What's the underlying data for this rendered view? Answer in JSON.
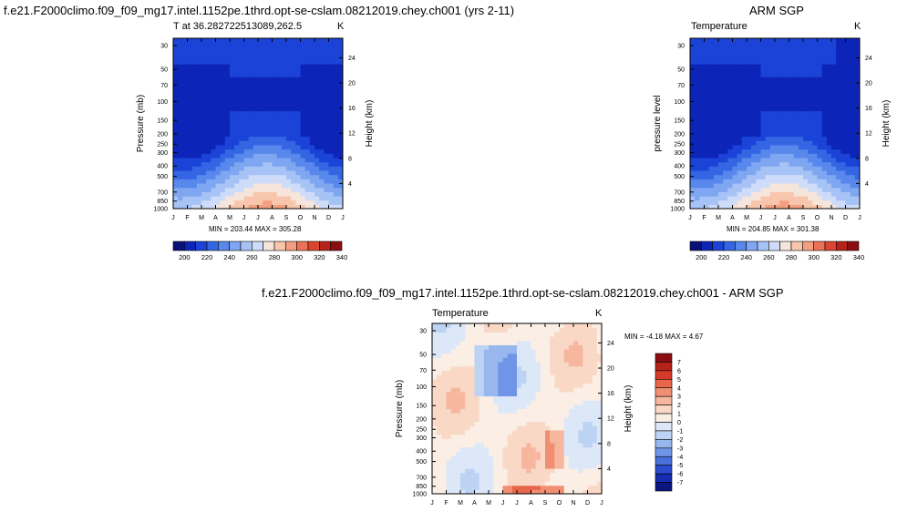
{
  "chart_data": [
    {
      "type": "heatmap",
      "panel": "model",
      "title": "f.e21.F2000climo.f09_f09_mg17.intel.1152pe.1thrd.opt-se-cslam.08212019.chey.ch001 (yrs 2-11)",
      "subtitle_left": "T at 36.282722513089,262.5",
      "unit": "K",
      "ylabel": "Pressure (mb)",
      "ylabel_right": "Height (km)",
      "stats": "MIN = 203.44  MAX = 305.28",
      "months": [
        "J",
        "F",
        "M",
        "A",
        "M",
        "J",
        "J",
        "A",
        "S",
        "O",
        "N",
        "D",
        "J"
      ],
      "pressure_ticks": [
        "30",
        "50",
        "70",
        "100",
        "150",
        "200",
        "250",
        "300",
        "400",
        "500",
        "700",
        "850",
        "1000"
      ],
      "height_ticks": [
        "24",
        "20",
        "16",
        "12",
        "8",
        "4"
      ],
      "colorbar_labels": [
        "200",
        "220",
        "240",
        "260",
        "280",
        "300",
        "320",
        "340"
      ]
    },
    {
      "type": "heatmap",
      "panel": "obs",
      "title": "ARM SGP",
      "subtitle_left": "Temperature",
      "unit": "K",
      "ylabel": "pressure level",
      "ylabel_right": "Height (km)",
      "stats": "MIN = 204.85  MAX = 301.38",
      "months": [
        "J",
        "F",
        "M",
        "A",
        "M",
        "J",
        "J",
        "A",
        "S",
        "O",
        "N",
        "D",
        "J"
      ],
      "pressure_ticks": [
        "30",
        "50",
        "70",
        "100",
        "150",
        "200",
        "250",
        "300",
        "400",
        "500",
        "700",
        "850",
        "1000"
      ],
      "height_ticks": [
        "24",
        "20",
        "16",
        "12",
        "8",
        "4"
      ],
      "colorbar_labels": [
        "200",
        "220",
        "240",
        "260",
        "280",
        "300",
        "320",
        "340"
      ]
    },
    {
      "type": "heatmap",
      "panel": "diff",
      "title": "f.e21.F2000climo.f09_f09_mg17.intel.1152pe.1thrd.opt-se-cslam.08212019.chey.ch001 - ARM SGP",
      "subtitle_left": "Temperature",
      "unit": "K",
      "ylabel": "Pressure (mb)",
      "ylabel_right": "Height (km)",
      "stats": "MIN =  -4.18  MAX =   4.67",
      "months": [
        "J",
        "F",
        "M",
        "A",
        "M",
        "J",
        "J",
        "A",
        "S",
        "O",
        "N",
        "D",
        "J"
      ],
      "pressure_ticks": [
        "30",
        "50",
        "70",
        "100",
        "150",
        "200",
        "250",
        "300",
        "400",
        "500",
        "700",
        "850",
        "1000"
      ],
      "height_ticks": [
        "24",
        "20",
        "16",
        "12",
        "8",
        "4"
      ],
      "colorbar_labels": [
        "7",
        "6",
        "5",
        "4",
        "3",
        "2",
        "1",
        "0",
        "-1",
        "-2",
        "-3",
        "-4",
        "-5",
        "-6",
        "-7"
      ]
    }
  ],
  "colors": {
    "abs_scale": [
      "#08107a",
      "#0c25b8",
      "#1b43d8",
      "#3466e4",
      "#5888ec",
      "#7fa6f1",
      "#a7c3f6",
      "#cfdcf9",
      "#f6e5da",
      "#f8c5ad",
      "#f49f81",
      "#ec7257",
      "#dc4631",
      "#b7221a",
      "#8c0d10"
    ],
    "diff_scale": [
      "#8c0d10",
      "#b7221a",
      "#d83a2a",
      "#e8664a",
      "#f08f72",
      "#f6b79e",
      "#f9d8c6",
      "#fbeee4",
      "#dce8f8",
      "#bdd3f3",
      "#98b7ee",
      "#6f95e6",
      "#4a70dc",
      "#2b4bd0",
      "#152bb0",
      "#0a1580"
    ]
  }
}
